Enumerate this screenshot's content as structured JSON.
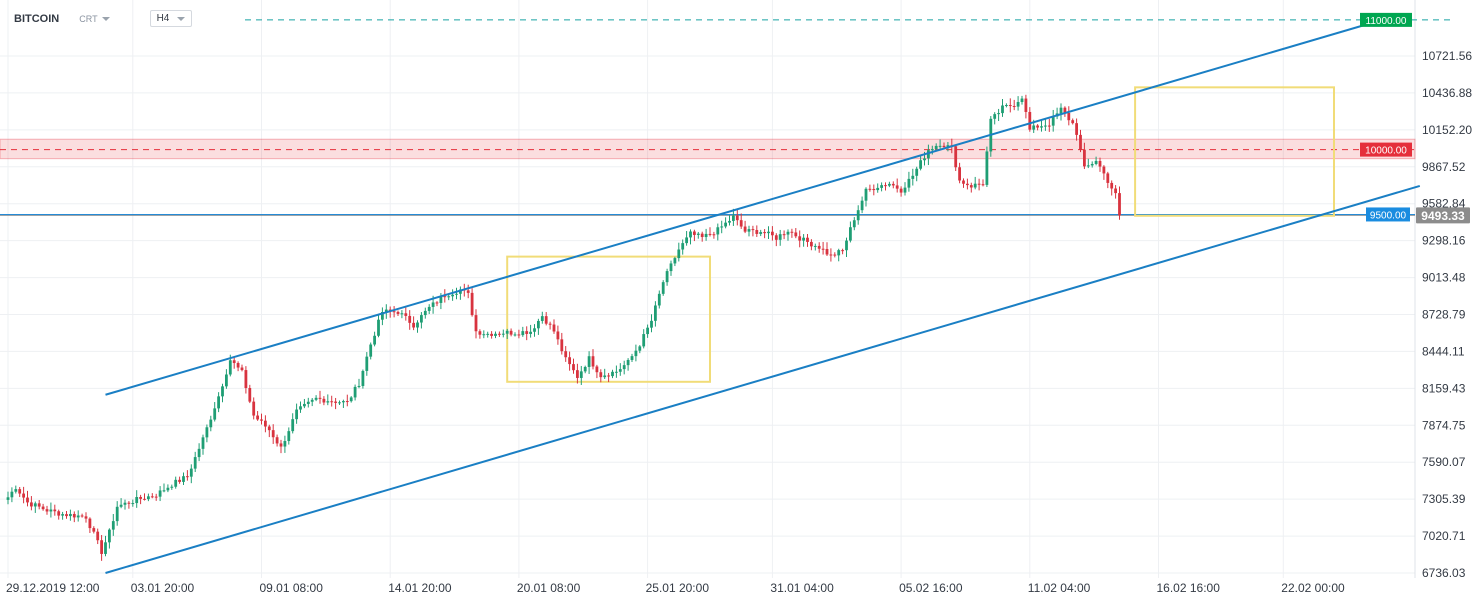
{
  "header": {
    "symbol": "BITCOIN",
    "symbol_type": "CRT",
    "timeframe": "H4"
  },
  "chart_data": {
    "type": "candlestick",
    "title": "",
    "xlabel": "",
    "ylabel": "",
    "ylim": [
      6736.03,
      11050
    ],
    "y_ticks": [
      "10721.56",
      "10436.88",
      "10152.20",
      "9867.52",
      "9582.84",
      "9298.16",
      "9013.48",
      "8728.79",
      "8444.11",
      "8159.43",
      "7874.75",
      "7590.07",
      "7305.39",
      "7020.71",
      "6736.03"
    ],
    "x_ticks": [
      {
        "label": "29.12.2019  12:00",
        "t": 0
      },
      {
        "label": "03.01  20:00",
        "t": 32
      },
      {
        "label": "09.01  08:00",
        "t": 65
      },
      {
        "label": "14.01  20:00",
        "t": 98
      },
      {
        "label": "20.01  08:00",
        "t": 131
      },
      {
        "label": "25.01  20:00",
        "t": 164
      },
      {
        "label": "31.01  04:00",
        "t": 196
      },
      {
        "label": "05.02  16:00",
        "t": 229
      },
      {
        "label": "11.02  04:00",
        "t": 262
      },
      {
        "label": "16.02  16:00",
        "t": 295
      },
      {
        "label": "22.02  00:00",
        "t": 327
      }
    ],
    "price_waypoints": [
      [
        0,
        7320
      ],
      [
        2,
        7400
      ],
      [
        5,
        7280
      ],
      [
        10,
        7220
      ],
      [
        14,
        7190
      ],
      [
        20,
        7170
      ],
      [
        24,
        6900
      ],
      [
        26,
        7050
      ],
      [
        28,
        7250
      ],
      [
        34,
        7310
      ],
      [
        38,
        7340
      ],
      [
        42,
        7420
      ],
      [
        46,
        7480
      ],
      [
        50,
        7770
      ],
      [
        54,
        8100
      ],
      [
        57,
        8380
      ],
      [
        60,
        8280
      ],
      [
        63,
        7950
      ],
      [
        67,
        7840
      ],
      [
        70,
        7700
      ],
      [
        74,
        7980
      ],
      [
        79,
        8080
      ],
      [
        84,
        8060
      ],
      [
        87,
        8050
      ],
      [
        90,
        8200
      ],
      [
        93,
        8500
      ],
      [
        96,
        8750
      ],
      [
        100,
        8750
      ],
      [
        104,
        8650
      ],
      [
        108,
        8780
      ],
      [
        112,
        8880
      ],
      [
        116,
        8920
      ],
      [
        118,
        8880
      ],
      [
        120,
        8600
      ],
      [
        123,
        8580
      ],
      [
        126,
        8590
      ],
      [
        130,
        8590
      ],
      [
        134,
        8600
      ],
      [
        137,
        8720
      ],
      [
        140,
        8600
      ],
      [
        143,
        8380
      ],
      [
        146,
        8250
      ],
      [
        149,
        8390
      ],
      [
        152,
        8260
      ],
      [
        156,
        8290
      ],
      [
        159,
        8360
      ],
      [
        162,
        8500
      ],
      [
        165,
        8680
      ],
      [
        168,
        8980
      ],
      [
        172,
        9230
      ],
      [
        175,
        9350
      ],
      [
        178,
        9320
      ],
      [
        182,
        9380
      ],
      [
        186,
        9480
      ],
      [
        189,
        9370
      ],
      [
        193,
        9370
      ],
      [
        197,
        9320
      ],
      [
        200,
        9380
      ],
      [
        204,
        9300
      ],
      [
        208,
        9250
      ],
      [
        211,
        9180
      ],
      [
        214,
        9220
      ],
      [
        217,
        9470
      ],
      [
        220,
        9680
      ],
      [
        223,
        9720
      ],
      [
        226,
        9740
      ],
      [
        229,
        9690
      ],
      [
        232,
        9800
      ],
      [
        236,
        10000
      ],
      [
        239,
        10050
      ],
      [
        242,
        10010
      ],
      [
        244,
        9760
      ],
      [
        247,
        9720
      ],
      [
        250,
        9740
      ],
      [
        252,
        10220
      ],
      [
        255,
        10320
      ],
      [
        258,
        10350
      ],
      [
        260,
        10410
      ],
      [
        262,
        10150
      ],
      [
        264,
        10180
      ],
      [
        267,
        10200
      ],
      [
        270,
        10310
      ],
      [
        273,
        10200
      ],
      [
        274,
        10130
      ],
      [
        276,
        9850
      ],
      [
        279,
        9920
      ],
      [
        282,
        9760
      ],
      [
        284,
        9650
      ],
      [
        285,
        9493.33
      ]
    ],
    "levels": [
      {
        "price": 11000,
        "label": "11000.00",
        "color": "#00a651",
        "style": "dashed-teal"
      },
      {
        "price": 10000,
        "label": "10000.00",
        "color": "#e52f3b",
        "style": "dashed-red",
        "zone": [
          9930,
          10080
        ]
      },
      {
        "price": 9500,
        "label": "9500.00",
        "color": "#1a8ce0",
        "style": "solid-blue"
      }
    ],
    "current_price": {
      "price": 9493.33,
      "label": "9493.33",
      "color": "#8c8c8c"
    },
    "channel_upper": [
      [
        25,
        8110
      ],
      [
        352,
        10997
      ]
    ],
    "channel_lower": [
      [
        25,
        6736
      ],
      [
        362,
        9720
      ]
    ],
    "boxes": [
      {
        "t0": 128,
        "t1": 180,
        "p0": 8210,
        "p1": 9175
      },
      {
        "t0": 289,
        "t1": 340,
        "p0": 9490,
        "p1": 10480
      }
    ],
    "colors": {
      "up": "#1f9e74",
      "down": "#d8333f",
      "channel": "#1a7fc4",
      "box": "#f1dc78"
    }
  }
}
